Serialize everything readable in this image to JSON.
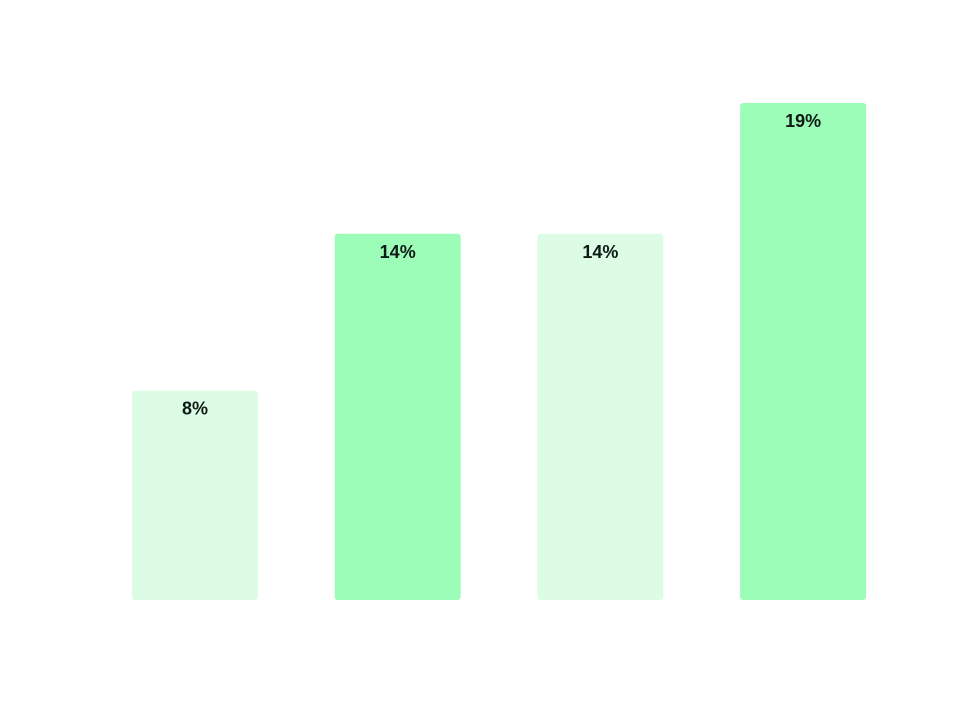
{
  "chart_data": {
    "type": "bar",
    "categories": [
      "",
      "",
      "",
      ""
    ],
    "values": [
      8,
      14,
      14,
      19
    ],
    "data_labels": [
      "8%",
      "14%",
      "14%",
      "19%"
    ],
    "unit": "%",
    "colors": [
      "#dcfce6",
      "#9bfdb8",
      "#dcfce6",
      "#9bfdb8"
    ],
    "ylim": [
      0,
      19
    ],
    "grid": false,
    "title": "",
    "xlabel": "",
    "ylabel": ""
  }
}
